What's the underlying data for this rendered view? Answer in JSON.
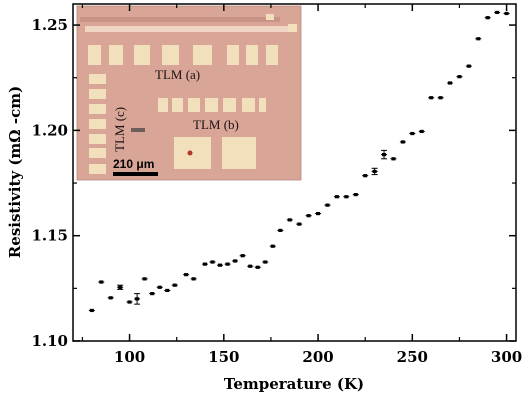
{
  "chart_data": {
    "type": "scatter",
    "xlabel": "Temperature (K)",
    "ylabel": "Resistivity (mΩ -cm)",
    "xlim": [
      70,
      305
    ],
    "ylim": [
      1.1,
      1.26
    ],
    "xticks": [
      100,
      150,
      200,
      250,
      300
    ],
    "yticks": [
      1.1,
      1.15,
      1.2,
      1.25
    ],
    "xtick_labels": [
      "100",
      "150",
      "200",
      "250",
      "300"
    ],
    "ytick_labels": [
      "1.10",
      "1.15",
      "1.20",
      "1.25"
    ],
    "grid": false,
    "legend": "none",
    "marker_color": "#000000",
    "series": [
      {
        "x": [
          80,
          85,
          90,
          95,
          100,
          104,
          108,
          112,
          116,
          120,
          124,
          130,
          134,
          140,
          144,
          148,
          152,
          156,
          160,
          164,
          168,
          172,
          176,
          180,
          185,
          190,
          195,
          200,
          205,
          210,
          215,
          220,
          225,
          230,
          235,
          240,
          245,
          250,
          255,
          260,
          265,
          270,
          275,
          280,
          285,
          290,
          295,
          300
        ],
        "y": [
          1.1145,
          1.128,
          1.1205,
          1.1255,
          1.1185,
          1.12,
          1.1295,
          1.1225,
          1.1255,
          1.124,
          1.1265,
          1.1315,
          1.1295,
          1.1365,
          1.1375,
          1.136,
          1.1365,
          1.138,
          1.1405,
          1.1355,
          1.135,
          1.1375,
          1.145,
          1.1525,
          1.1575,
          1.1555,
          1.1595,
          1.1605,
          1.1645,
          1.1685,
          1.1685,
          1.1695,
          1.1785,
          1.1805,
          1.1885,
          1.1865,
          1.1945,
          1.1985,
          1.1995,
          1.2155,
          1.2155,
          1.2225,
          1.2255,
          1.2305,
          1.2435,
          1.2535,
          1.256,
          1.2555
        ],
        "yerr": [
          0,
          0,
          0,
          0.001,
          0,
          0.0025,
          0,
          0,
          0,
          0,
          0,
          0,
          0,
          0,
          0,
          0,
          0,
          0,
          0,
          0,
          0,
          0,
          0,
          0,
          0,
          0,
          0,
          0,
          0,
          0,
          0,
          0,
          0,
          0.0015,
          0.002,
          0,
          0,
          0,
          0,
          0,
          0,
          0,
          0,
          0,
          0,
          0,
          0,
          0
        ]
      }
    ]
  },
  "inset": {
    "label_a": "TLM (a)",
    "label_b": "TLM (b)",
    "label_c": "TLM (c)",
    "scale_bar": "210 μm",
    "background_color": "#d8a596",
    "pad_color": "#f2e0bd"
  }
}
